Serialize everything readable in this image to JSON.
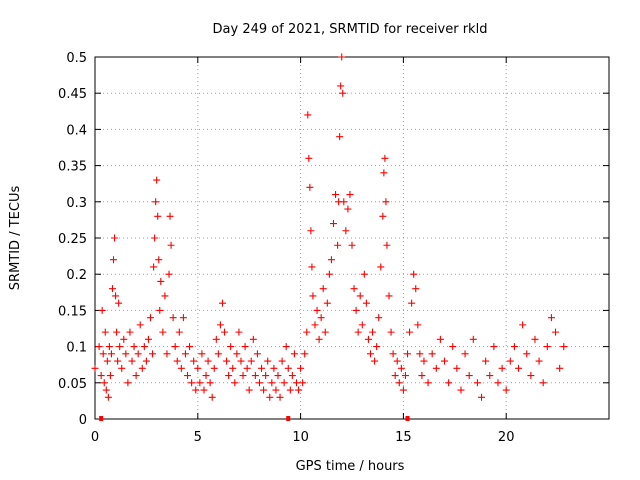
{
  "chart_data": {
    "type": "scatter",
    "title": "Day 249 of 2021, SRMTID for receiver rkld",
    "xlabel": "GPS time / hours",
    "ylabel": "SRMTID / TECUs",
    "xlim": [
      0,
      25
    ],
    "ylim": [
      0,
      0.5
    ],
    "xticks": [
      0,
      5,
      10,
      15,
      20
    ],
    "yticks": [
      0,
      0.05,
      0.1,
      0.15,
      0.2,
      0.25,
      0.3,
      0.35,
      0.4,
      0.45,
      0.5
    ],
    "grid": true,
    "marker": "+",
    "color": "#ff0000",
    "series": [
      {
        "name": "SRMTID",
        "points": [
          [
            0.0,
            0.07
          ],
          [
            0.2,
            0.1
          ],
          [
            0.3,
            0.06
          ],
          [
            0.35,
            0.15
          ],
          [
            0.4,
            0.09
          ],
          [
            0.45,
            0.05
          ],
          [
            0.5,
            0.12
          ],
          [
            0.55,
            0.04
          ],
          [
            0.6,
            0.08
          ],
          [
            0.65,
            0.03
          ],
          [
            0.7,
            0.1
          ],
          [
            0.75,
            0.06
          ],
          [
            0.8,
            0.09
          ],
          [
            0.85,
            0.18
          ],
          [
            0.9,
            0.22
          ],
          [
            0.95,
            0.25
          ],
          [
            1.0,
            0.17
          ],
          [
            1.05,
            0.12
          ],
          [
            1.1,
            0.08
          ],
          [
            1.15,
            0.16
          ],
          [
            1.2,
            0.1
          ],
          [
            1.3,
            0.07
          ],
          [
            1.4,
            0.11
          ],
          [
            1.5,
            0.09
          ],
          [
            1.6,
            0.05
          ],
          [
            1.7,
            0.12
          ],
          [
            1.8,
            0.08
          ],
          [
            1.9,
            0.1
          ],
          [
            2.0,
            0.06
          ],
          [
            2.1,
            0.09
          ],
          [
            2.2,
            0.13
          ],
          [
            2.3,
            0.07
          ],
          [
            2.4,
            0.1
          ],
          [
            2.5,
            0.08
          ],
          [
            2.6,
            0.11
          ],
          [
            2.7,
            0.14
          ],
          [
            2.8,
            0.09
          ],
          [
            2.85,
            0.21
          ],
          [
            2.9,
            0.25
          ],
          [
            2.95,
            0.3
          ],
          [
            3.0,
            0.33
          ],
          [
            3.05,
            0.28
          ],
          [
            3.1,
            0.22
          ],
          [
            3.15,
            0.15
          ],
          [
            3.2,
            0.19
          ],
          [
            3.3,
            0.12
          ],
          [
            3.4,
            0.17
          ],
          [
            3.5,
            0.09
          ],
          [
            3.6,
            0.2
          ],
          [
            3.65,
            0.28
          ],
          [
            3.7,
            0.24
          ],
          [
            3.8,
            0.14
          ],
          [
            3.9,
            0.1
          ],
          [
            4.0,
            0.08
          ],
          [
            4.1,
            0.12
          ],
          [
            4.2,
            0.07
          ],
          [
            4.3,
            0.14
          ],
          [
            4.4,
            0.09
          ],
          [
            4.5,
            0.06
          ],
          [
            4.6,
            0.1
          ],
          [
            4.7,
            0.05
          ],
          [
            4.8,
            0.08
          ],
          [
            4.9,
            0.04
          ],
          [
            5.0,
            0.07
          ],
          [
            5.1,
            0.05
          ],
          [
            5.2,
            0.09
          ],
          [
            5.3,
            0.04
          ],
          [
            5.4,
            0.06
          ],
          [
            5.5,
            0.08
          ],
          [
            5.6,
            0.05
          ],
          [
            5.7,
            0.03
          ],
          [
            5.8,
            0.07
          ],
          [
            5.9,
            0.11
          ],
          [
            6.0,
            0.09
          ],
          [
            6.1,
            0.13
          ],
          [
            6.2,
            0.16
          ],
          [
            6.3,
            0.12
          ],
          [
            6.4,
            0.08
          ],
          [
            6.5,
            0.06
          ],
          [
            6.6,
            0.1
          ],
          [
            6.7,
            0.07
          ],
          [
            6.8,
            0.05
          ],
          [
            6.9,
            0.09
          ],
          [
            7.0,
            0.12
          ],
          [
            7.1,
            0.08
          ],
          [
            7.2,
            0.06
          ],
          [
            7.3,
            0.1
          ],
          [
            7.4,
            0.07
          ],
          [
            7.5,
            0.04
          ],
          [
            7.6,
            0.08
          ],
          [
            7.7,
            0.11
          ],
          [
            7.8,
            0.06
          ],
          [
            7.9,
            0.09
          ],
          [
            8.0,
            0.05
          ],
          [
            8.1,
            0.07
          ],
          [
            8.2,
            0.04
          ],
          [
            8.3,
            0.06
          ],
          [
            8.4,
            0.08
          ],
          [
            8.5,
            0.03
          ],
          [
            8.6,
            0.05
          ],
          [
            8.7,
            0.07
          ],
          [
            8.8,
            0.04
          ],
          [
            8.9,
            0.06
          ],
          [
            9.0,
            0.03
          ],
          [
            9.1,
            0.08
          ],
          [
            9.2,
            0.05
          ],
          [
            9.3,
            0.1
          ],
          [
            9.4,
            0.07
          ],
          [
            9.5,
            0.04
          ],
          [
            9.6,
            0.06
          ],
          [
            9.7,
            0.09
          ],
          [
            9.8,
            0.05
          ],
          [
            9.9,
            0.04
          ],
          [
            10.0,
            0.07
          ],
          [
            10.1,
            0.05
          ],
          [
            10.2,
            0.09
          ],
          [
            10.3,
            0.12
          ],
          [
            10.35,
            0.42
          ],
          [
            10.4,
            0.36
          ],
          [
            10.45,
            0.32
          ],
          [
            10.5,
            0.26
          ],
          [
            10.55,
            0.21
          ],
          [
            10.6,
            0.17
          ],
          [
            10.7,
            0.13
          ],
          [
            10.8,
            0.15
          ],
          [
            10.9,
            0.11
          ],
          [
            11.0,
            0.14
          ],
          [
            11.1,
            0.18
          ],
          [
            11.2,
            0.12
          ],
          [
            11.3,
            0.16
          ],
          [
            11.4,
            0.2
          ],
          [
            11.5,
            0.22
          ],
          [
            11.6,
            0.27
          ],
          [
            11.7,
            0.31
          ],
          [
            11.8,
            0.24
          ],
          [
            11.85,
            0.3
          ],
          [
            11.9,
            0.39
          ],
          [
            11.95,
            0.46
          ],
          [
            12.0,
            0.5
          ],
          [
            12.05,
            0.45
          ],
          [
            12.1,
            0.3
          ],
          [
            12.2,
            0.26
          ],
          [
            12.3,
            0.29
          ],
          [
            12.4,
            0.31
          ],
          [
            12.5,
            0.24
          ],
          [
            12.6,
            0.18
          ],
          [
            12.7,
            0.15
          ],
          [
            12.8,
            0.12
          ],
          [
            12.9,
            0.17
          ],
          [
            13.0,
            0.13
          ],
          [
            13.1,
            0.2
          ],
          [
            13.2,
            0.16
          ],
          [
            13.3,
            0.11
          ],
          [
            13.4,
            0.09
          ],
          [
            13.5,
            0.12
          ],
          [
            13.6,
            0.08
          ],
          [
            13.7,
            0.1
          ],
          [
            13.8,
            0.14
          ],
          [
            13.9,
            0.21
          ],
          [
            14.0,
            0.28
          ],
          [
            14.05,
            0.34
          ],
          [
            14.1,
            0.36
          ],
          [
            14.15,
            0.3
          ],
          [
            14.2,
            0.24
          ],
          [
            14.3,
            0.17
          ],
          [
            14.4,
            0.12
          ],
          [
            14.5,
            0.09
          ],
          [
            14.6,
            0.06
          ],
          [
            14.7,
            0.08
          ],
          [
            14.8,
            0.05
          ],
          [
            14.9,
            0.07
          ],
          [
            15.0,
            0.04
          ],
          [
            15.1,
            0.06
          ],
          [
            15.2,
            0.09
          ],
          [
            15.3,
            0.12
          ],
          [
            15.4,
            0.16
          ],
          [
            15.5,
            0.2
          ],
          [
            15.6,
            0.18
          ],
          [
            15.7,
            0.13
          ],
          [
            15.8,
            0.09
          ],
          [
            15.9,
            0.06
          ],
          [
            16.0,
            0.08
          ],
          [
            16.2,
            0.05
          ],
          [
            16.4,
            0.09
          ],
          [
            16.6,
            0.07
          ],
          [
            16.8,
            0.11
          ],
          [
            17.0,
            0.08
          ],
          [
            17.2,
            0.05
          ],
          [
            17.4,
            0.1
          ],
          [
            17.6,
            0.07
          ],
          [
            17.8,
            0.04
          ],
          [
            18.0,
            0.09
          ],
          [
            18.2,
            0.06
          ],
          [
            18.4,
            0.11
          ],
          [
            18.6,
            0.05
          ],
          [
            18.8,
            0.03
          ],
          [
            19.0,
            0.08
          ],
          [
            19.2,
            0.06
          ],
          [
            19.4,
            0.1
          ],
          [
            19.6,
            0.05
          ],
          [
            19.8,
            0.07
          ],
          [
            20.0,
            0.04
          ],
          [
            20.2,
            0.08
          ],
          [
            20.4,
            0.1
          ],
          [
            20.6,
            0.07
          ],
          [
            20.8,
            0.13
          ],
          [
            21.0,
            0.09
          ],
          [
            21.2,
            0.06
          ],
          [
            21.4,
            0.11
          ],
          [
            21.6,
            0.08
          ],
          [
            21.8,
            0.05
          ],
          [
            22.0,
            0.1
          ],
          [
            22.2,
            0.14
          ],
          [
            22.4,
            0.12
          ],
          [
            22.6,
            0.07
          ],
          [
            22.8,
            0.1
          ]
        ]
      }
    ],
    "axis_markers": [
      0.3,
      9.4,
      15.2
    ]
  }
}
